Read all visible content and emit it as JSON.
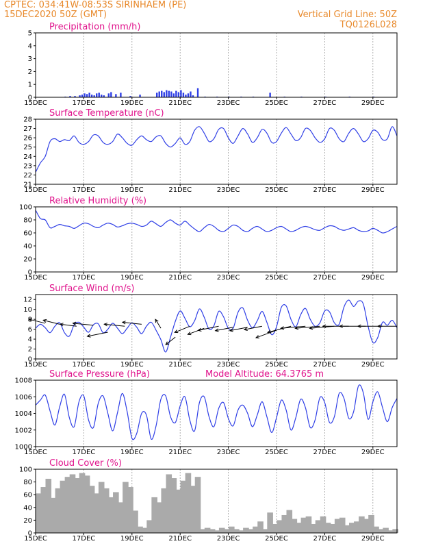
{
  "header": {
    "left_line1": "CPTEC:   034:41W-08:53S  SIRINHAEM (PE)",
    "left_line2": "15DEC2020 50Z (GMT)",
    "right_line1": "Vertical Grid Line: 50Z",
    "right_line2": "TQ0126L028"
  },
  "colors": {
    "header": "#e8892b",
    "title": "#e0138c",
    "line": "#2f3fe6",
    "cloud": "#aaaaaa",
    "arrow": "#000000"
  },
  "x_axis": {
    "tick_days": [
      15,
      17,
      19,
      21,
      23,
      25,
      27,
      29
    ],
    "tick_labels": [
      "15DEC",
      "17DEC",
      "19DEC",
      "21DEC",
      "23DEC",
      "25DEC",
      "27DEC",
      "29DEC"
    ],
    "range_days": [
      15,
      30
    ]
  },
  "chart_data": [
    {
      "type": "bar",
      "title": "Precipitation (mm/h)",
      "ylim": [
        0,
        5
      ],
      "yticks": [
        0,
        1,
        2,
        3,
        4,
        5
      ],
      "x_unit": "day of December 2020",
      "x": [
        16.2,
        16.4,
        16.6,
        16.8,
        16.9,
        17.0,
        17.1,
        17.2,
        17.3,
        17.4,
        17.5,
        17.6,
        17.7,
        17.8,
        18.0,
        18.1,
        18.3,
        18.5,
        18.9,
        19.3,
        20.0,
        20.1,
        20.2,
        20.3,
        20.4,
        20.5,
        20.6,
        20.7,
        20.8,
        20.9,
        21.0,
        21.1,
        21.2,
        21.3,
        21.4,
        21.5,
        21.7,
        22.0,
        22.5,
        23.0,
        23.5,
        24.0,
        24.7,
        25.3,
        26.0,
        27.0,
        28.0,
        29.0
      ],
      "values": [
        0.05,
        0.1,
        0.1,
        0.15,
        0.2,
        0.3,
        0.25,
        0.35,
        0.2,
        0.15,
        0.3,
        0.35,
        0.2,
        0.15,
        0.3,
        0.4,
        0.25,
        0.35,
        0.1,
        0.2,
        0.35,
        0.45,
        0.5,
        0.4,
        0.55,
        0.5,
        0.45,
        0.3,
        0.5,
        0.4,
        0.55,
        0.35,
        0.2,
        0.3,
        0.45,
        0.15,
        0.7,
        0.05,
        0.05,
        0.05,
        0.05,
        0.05,
        0.35,
        0.05,
        0.05,
        0.05,
        0.05,
        0.05
      ]
    },
    {
      "type": "line",
      "title": "Surface Temperature (nC)",
      "ylim": [
        21,
        28
      ],
      "yticks": [
        21,
        22,
        23,
        24,
        25,
        26,
        27,
        28
      ],
      "x_unit": "day of December 2020",
      "x": [
        15.0,
        15.2,
        15.4,
        15.6,
        15.8,
        16.0,
        16.2,
        16.4,
        16.6,
        16.8,
        17.0,
        17.2,
        17.4,
        17.6,
        17.8,
        18.0,
        18.2,
        18.4,
        18.6,
        18.8,
        19.0,
        19.2,
        19.4,
        19.6,
        19.8,
        20.0,
        20.2,
        20.4,
        20.6,
        20.8,
        21.0,
        21.2,
        21.4,
        21.6,
        21.8,
        22.0,
        22.2,
        22.4,
        22.6,
        22.8,
        23.0,
        23.2,
        23.4,
        23.6,
        23.8,
        24.0,
        24.2,
        24.4,
        24.6,
        24.8,
        25.0,
        25.2,
        25.4,
        25.6,
        25.8,
        26.0,
        26.2,
        26.4,
        26.6,
        26.8,
        27.0,
        27.2,
        27.4,
        27.6,
        27.8,
        28.0,
        28.2,
        28.4,
        28.6,
        28.8,
        29.0,
        29.2,
        29.4,
        29.6,
        29.8,
        30.0
      ],
      "values": [
        22.3,
        23.3,
        24.0,
        25.6,
        25.9,
        25.6,
        25.8,
        25.7,
        26.2,
        25.5,
        25.3,
        25.6,
        26.3,
        26.2,
        25.5,
        25.3,
        25.6,
        26.4,
        26.0,
        25.4,
        25.2,
        25.8,
        26.2,
        25.8,
        25.6,
        26.1,
        26.2,
        25.4,
        25.0,
        25.4,
        26.0,
        25.3,
        25.6,
        26.8,
        27.2,
        26.5,
        25.6,
        25.9,
        26.9,
        27.0,
        26.0,
        25.4,
        26.2,
        27.0,
        26.4,
        25.5,
        26.0,
        26.9,
        26.5,
        25.5,
        25.6,
        26.5,
        27.1,
        26.4,
        25.7,
        26.0,
        27.0,
        26.8,
        26.0,
        25.5,
        25.9,
        27.0,
        26.8,
        25.9,
        25.6,
        26.5,
        27.0,
        26.4,
        25.6,
        25.9,
        26.8,
        26.6,
        25.8,
        25.9,
        27.2,
        26.2
      ]
    },
    {
      "type": "line",
      "title": "Relative Humidity (%)",
      "ylim": [
        0,
        100
      ],
      "yticks": [
        0,
        20,
        40,
        60,
        80,
        100
      ],
      "x_unit": "day of December 2020",
      "x": [
        15.0,
        15.2,
        15.4,
        15.6,
        15.8,
        16.0,
        16.2,
        16.4,
        16.6,
        16.8,
        17.0,
        17.2,
        17.4,
        17.6,
        17.8,
        18.0,
        18.2,
        18.4,
        18.6,
        18.8,
        19.0,
        19.2,
        19.4,
        19.6,
        19.8,
        20.0,
        20.2,
        20.4,
        20.6,
        20.8,
        21.0,
        21.2,
        21.4,
        21.6,
        21.8,
        22.0,
        22.2,
        22.4,
        22.6,
        22.8,
        23.0,
        23.2,
        23.4,
        23.6,
        23.8,
        24.0,
        24.2,
        24.4,
        24.6,
        24.8,
        25.0,
        25.2,
        25.4,
        25.6,
        25.8,
        26.0,
        26.2,
        26.4,
        26.6,
        26.8,
        27.0,
        27.2,
        27.4,
        27.6,
        27.8,
        28.0,
        28.2,
        28.4,
        28.6,
        28.8,
        29.0,
        29.2,
        29.4,
        29.6,
        29.8,
        30.0
      ],
      "values": [
        95,
        82,
        80,
        68,
        70,
        73,
        71,
        70,
        67,
        71,
        75,
        74,
        70,
        68,
        72,
        75,
        73,
        69,
        71,
        74,
        75,
        73,
        70,
        72,
        78,
        74,
        70,
        76,
        80,
        75,
        72,
        78,
        72,
        66,
        62,
        68,
        73,
        70,
        64,
        62,
        67,
        72,
        70,
        64,
        62,
        67,
        70,
        66,
        62,
        64,
        68,
        70,
        66,
        62,
        64,
        68,
        70,
        68,
        65,
        64,
        68,
        71,
        70,
        66,
        64,
        66,
        68,
        64,
        62,
        63,
        67,
        64,
        60,
        62,
        66,
        70
      ]
    },
    {
      "type": "line",
      "title": "Surface Wind (m/s)",
      "ylim": [
        0,
        13
      ],
      "yticks": [
        0,
        2,
        4,
        6,
        8,
        10,
        12
      ],
      "x_unit": "day of December 2020",
      "x": [
        15.0,
        15.2,
        15.4,
        15.6,
        15.8,
        16.0,
        16.2,
        16.4,
        16.6,
        16.8,
        17.0,
        17.2,
        17.4,
        17.6,
        17.8,
        18.0,
        18.2,
        18.4,
        18.6,
        18.8,
        19.0,
        19.2,
        19.4,
        19.6,
        19.8,
        20.0,
        20.2,
        20.4,
        20.6,
        20.8,
        21.0,
        21.2,
        21.4,
        21.6,
        21.8,
        22.0,
        22.2,
        22.4,
        22.6,
        22.8,
        23.0,
        23.2,
        23.4,
        23.6,
        23.8,
        24.0,
        24.2,
        24.4,
        24.6,
        24.8,
        25.0,
        25.2,
        25.4,
        25.6,
        25.8,
        26.0,
        26.2,
        26.4,
        26.6,
        26.8,
        27.0,
        27.2,
        27.4,
        27.6,
        27.8,
        28.0,
        28.2,
        28.4,
        28.6,
        28.8,
        29.0,
        29.2,
        29.4,
        29.6,
        29.8,
        30.0
      ],
      "values": [
        6.2,
        7.0,
        6.3,
        5.3,
        6.6,
        7.3,
        5.3,
        4.6,
        6.9,
        7.4,
        6.4,
        5.4,
        6.9,
        7.1,
        5.3,
        6.0,
        7.2,
        6.2,
        5.1,
        6.2,
        7.3,
        6.4,
        5.1,
        6.6,
        7.4,
        5.8,
        3.9,
        1.4,
        4.4,
        7.6,
        9.7,
        8.2,
        6.5,
        7.7,
        10.1,
        8.4,
        6.0,
        6.7,
        9.6,
        8.5,
        6.2,
        6.2,
        9.4,
        10.3,
        7.8,
        6.3,
        7.7,
        9.6,
        7.4,
        4.9,
        6.5,
        10.4,
        10.7,
        8.0,
        6.5,
        8.9,
        10.2,
        8.0,
        6.6,
        7.3,
        9.7,
        9.5,
        7.3,
        7.0,
        10.5,
        11.9,
        10.6,
        11.7,
        11.1,
        6.6,
        3.3,
        4.3,
        7.4,
        6.8,
        7.8,
        6.3
      ],
      "barbs": {
        "x": [
          15.4,
          16.0,
          16.7,
          17.4,
          18.0,
          18.7,
          19.4,
          20.2,
          20.8,
          21.4,
          22.0,
          22.6,
          23.2,
          23.8,
          24.4,
          25.0,
          25.6,
          26.2,
          26.8,
          27.4,
          28.0,
          28.7,
          29.4,
          30.0
        ],
        "speed": [
          7.2,
          7.0,
          6.6,
          6.8,
          5.4,
          6.6,
          7.0,
          6.2,
          4.4,
          6.6,
          6.2,
          6.6,
          6.4,
          6.4,
          6.6,
          5.8,
          6.6,
          6.6,
          6.6,
          6.6,
          6.6,
          6.6,
          6.6,
          6.6
        ],
        "dx": [
          -24,
          -24,
          -24,
          -30,
          -30,
          -30,
          -28,
          -8,
          -14,
          -22,
          -24,
          -30,
          -26,
          -26,
          -26,
          -30,
          -34,
          -36,
          -36,
          -36,
          -38,
          -38,
          -36,
          -28
        ],
        "dy": [
          -6,
          -6,
          -3,
          -3,
          6,
          -3,
          -3,
          -13,
          11,
          9,
          9,
          6,
          5,
          5,
          5,
          11,
          9,
          3,
          3,
          3,
          0,
          0,
          0,
          0
        ]
      }
    },
    {
      "type": "line",
      "title": "Surface Pressure (hPa)",
      "annotation": "Model Altitude: 64.3765 m",
      "ylim": [
        1000,
        1008
      ],
      "yticks": [
        1000,
        1002,
        1004,
        1006,
        1008
      ],
      "x_unit": "day of December 2020",
      "x": [
        15.0,
        15.2,
        15.4,
        15.6,
        15.8,
        16.0,
        16.2,
        16.4,
        16.6,
        16.8,
        17.0,
        17.2,
        17.4,
        17.6,
        17.8,
        18.0,
        18.2,
        18.4,
        18.6,
        18.8,
        19.0,
        19.2,
        19.4,
        19.6,
        19.8,
        20.0,
        20.2,
        20.4,
        20.6,
        20.8,
        21.0,
        21.2,
        21.4,
        21.6,
        21.8,
        22.0,
        22.2,
        22.4,
        22.6,
        22.8,
        23.0,
        23.2,
        23.4,
        23.6,
        23.8,
        24.0,
        24.2,
        24.4,
        24.6,
        24.8,
        25.0,
        25.2,
        25.4,
        25.6,
        25.8,
        26.0,
        26.2,
        26.4,
        26.6,
        26.8,
        27.0,
        27.2,
        27.4,
        27.6,
        27.8,
        28.0,
        28.2,
        28.4,
        28.6,
        28.8,
        29.0,
        29.2,
        29.4,
        29.6,
        29.8,
        30.0
      ],
      "values": [
        1005.0,
        1005.6,
        1006.2,
        1004.3,
        1002.6,
        1004.8,
        1006.3,
        1003.5,
        1002.4,
        1005.4,
        1006.1,
        1003.2,
        1002.3,
        1005.2,
        1006.1,
        1004.0,
        1001.9,
        1004.1,
        1006.4,
        1004.2,
        1001.0,
        1001.6,
        1004.0,
        1003.8,
        1000.9,
        1002.5,
        1005.7,
        1006.1,
        1003.6,
        1002.9,
        1004.9,
        1006.0,
        1003.2,
        1001.9,
        1005.3,
        1006.0,
        1003.6,
        1002.4,
        1004.6,
        1005.3,
        1003.4,
        1002.5,
        1004.4,
        1005.0,
        1004.0,
        1002.4,
        1003.8,
        1005.4,
        1003.6,
        1001.7,
        1003.5,
        1005.6,
        1004.4,
        1002.0,
        1003.5,
        1005.7,
        1004.7,
        1002.3,
        1003.2,
        1005.9,
        1005.3,
        1002.9,
        1003.6,
        1006.4,
        1005.8,
        1003.4,
        1004.2,
        1007.3,
        1006.5,
        1003.3,
        1005.4,
        1006.6,
        1004.7,
        1003.0,
        1004.7,
        1005.8
      ]
    },
    {
      "type": "bar",
      "title": "Cloud Cover (%)",
      "ylim": [
        0,
        100
      ],
      "yticks": [
        0,
        20,
        40,
        60,
        80,
        100
      ],
      "x_unit": "day of December 2020",
      "x": [
        15.0,
        15.2,
        15.4,
        15.6,
        15.8,
        16.0,
        16.2,
        16.4,
        16.6,
        16.8,
        17.0,
        17.2,
        17.4,
        17.6,
        17.8,
        18.0,
        18.2,
        18.4,
        18.6,
        18.8,
        19.0,
        19.2,
        19.4,
        19.6,
        19.8,
        20.0,
        20.2,
        20.4,
        20.6,
        20.8,
        21.0,
        21.2,
        21.4,
        21.6,
        21.8,
        22.0,
        22.2,
        22.4,
        22.6,
        22.8,
        23.0,
        23.2,
        23.4,
        23.6,
        23.8,
        24.0,
        24.2,
        24.4,
        24.6,
        24.8,
        25.0,
        25.2,
        25.4,
        25.6,
        25.8,
        26.0,
        26.2,
        26.4,
        26.6,
        26.8,
        27.0,
        27.2,
        27.4,
        27.6,
        27.8,
        28.0,
        28.2,
        28.4,
        28.6,
        28.8,
        29.0,
        29.2,
        29.4,
        29.6,
        29.8
      ],
      "values": [
        62,
        72,
        85,
        55,
        70,
        82,
        88,
        92,
        86,
        94,
        90,
        74,
        62,
        80,
        70,
        56,
        64,
        48,
        80,
        72,
        35,
        10,
        8,
        20,
        56,
        48,
        70,
        92,
        86,
        68,
        82,
        94,
        74,
        88,
        6,
        8,
        6,
        4,
        8,
        6,
        10,
        6,
        4,
        8,
        6,
        10,
        18,
        6,
        32,
        14,
        20,
        28,
        36,
        22,
        16,
        24,
        26,
        14,
        20,
        26,
        16,
        14,
        22,
        24,
        12,
        16,
        18,
        26,
        22,
        28,
        10,
        6,
        8,
        4,
        6
      ]
    }
  ]
}
